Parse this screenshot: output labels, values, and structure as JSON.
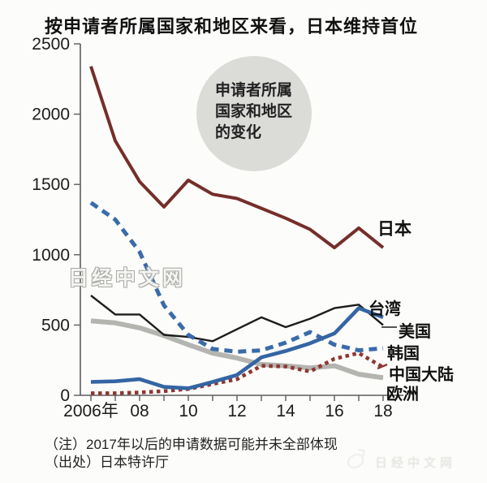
{
  "title": "按申请者所属国家和地区来看，日本维持首位",
  "bubble": {
    "line1": "申请者所属",
    "line2": "国家和地区",
    "line3": "的变化"
  },
  "watermark": "日经中文网",
  "watermark_bottom": "日经中文网",
  "notes": {
    "note": "（注）2017年以后的申请数据可能并未全部体现",
    "source": "（出处）日本特许厅"
  },
  "legend": {
    "japan": "日本",
    "taiwan": "台湾",
    "usa": "美国",
    "korea": "韩国",
    "china": "中国大陆",
    "europe": "欧洲"
  },
  "chart_data": {
    "type": "line",
    "title": "按申请者所属国家和地区来看，日本维持首位",
    "xlabel": "",
    "ylabel": "",
    "x": [
      2006,
      2007,
      2008,
      2009,
      2010,
      2011,
      2012,
      2013,
      2014,
      2015,
      2016,
      2017,
      2018
    ],
    "xlim": [
      2006,
      2018
    ],
    "ylim": [
      0,
      2500
    ],
    "grid": false,
    "x_ticks": [
      {
        "year": 2006,
        "label": "2006年"
      },
      {
        "year": 2008,
        "label": "08"
      },
      {
        "year": 2010,
        "label": "10"
      },
      {
        "year": 2012,
        "label": "12"
      },
      {
        "year": 2014,
        "label": "14"
      },
      {
        "year": 2016,
        "label": "16"
      },
      {
        "year": 2018,
        "label": "18"
      }
    ],
    "y_ticks": [
      {
        "value": 0,
        "label": "0"
      },
      {
        "value": 500,
        "label": "500"
      },
      {
        "value": 1000,
        "label": "1000"
      },
      {
        "value": 1500,
        "label": "1500"
      },
      {
        "value": 2000,
        "label": "2000"
      },
      {
        "value": 2500,
        "label": "2500"
      }
    ],
    "legend_position": "right-inline",
    "series": [
      {
        "name": "欧洲",
        "key": "europe",
        "color": "#b4b4b1",
        "width": 6,
        "dash": "",
        "values": [
          530,
          515,
          480,
          425,
          360,
          300,
          265,
          220,
          210,
          195,
          210,
          150,
          125
        ]
      },
      {
        "name": "美国",
        "key": "usa",
        "color": "#1c1c1c",
        "width": 2.4,
        "dash": "",
        "values": [
          710,
          575,
          575,
          430,
          415,
          385,
          470,
          555,
          485,
          545,
          620,
          645,
          500
        ]
      },
      {
        "name": "韩国",
        "key": "korea",
        "color": "#3a6ba9",
        "width": 5,
        "dash": "10 7",
        "values": [
          1370,
          1250,
          1020,
          640,
          430,
          330,
          310,
          320,
          375,
          450,
          360,
          320,
          335
        ]
      },
      {
        "name": "中国大陆",
        "key": "china",
        "color": "#8d3732",
        "width": 4.6,
        "dash": "4.5 4.5",
        "values": [
          15,
          15,
          20,
          30,
          45,
          80,
          115,
          210,
          205,
          170,
          260,
          300,
          200
        ]
      },
      {
        "name": "台湾",
        "key": "taiwan",
        "color": "#3465a4",
        "width": 4.6,
        "dash": "",
        "values": [
          95,
          100,
          115,
          60,
          50,
          95,
          145,
          270,
          315,
          370,
          440,
          620,
          555
        ]
      },
      {
        "name": "日本",
        "key": "japan",
        "color": "#752e2a",
        "width": 4,
        "dash": "",
        "values": [
          2340,
          1810,
          1520,
          1340,
          1530,
          1430,
          1400,
          1330,
          1260,
          1180,
          1050,
          1190,
          1050
        ]
      }
    ]
  }
}
